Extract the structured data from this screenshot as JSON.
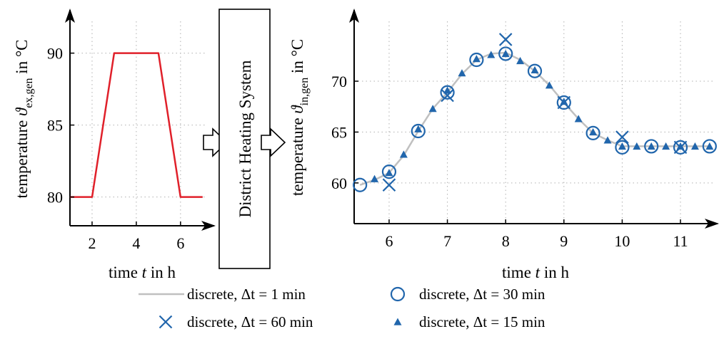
{
  "colors": {
    "input_line": "#e0202a",
    "reference_line": "#c0c0c0",
    "marker": "#2166ac",
    "grid": "#b0b0b0"
  },
  "block_label": "District Heating System",
  "chart_data": [
    {
      "type": "line",
      "name": "input",
      "xlabel": {
        "pre": "time ",
        "var": "t",
        "post": " in h"
      },
      "ylabel": {
        "pre": "temperature ",
        "var": "ϑ",
        "sub": "ex,gen",
        "post": " in °C"
      },
      "xlim": [
        1,
        7.2
      ],
      "ylim": [
        78,
        93
      ],
      "x_ticks": [
        2,
        4,
        6
      ],
      "y_ticks": [
        80,
        85,
        90
      ],
      "grid": true,
      "series": [
        {
          "x": [
            1,
            2,
            3,
            5,
            6,
            7
          ],
          "y": [
            80,
            80,
            90,
            90,
            80,
            80
          ]
        }
      ]
    },
    {
      "type": "line",
      "name": "output",
      "xlabel": {
        "pre": "time ",
        "var": "t",
        "post": " in h"
      },
      "ylabel": {
        "pre": "temperature ",
        "var": "ϑ",
        "sub": "in,gen",
        "post": " in °C"
      },
      "xlim": [
        5.4,
        11.6
      ],
      "ylim": [
        56,
        77
      ],
      "x_ticks": [
        6,
        7,
        8,
        9,
        10,
        11
      ],
      "y_ticks": [
        60,
        65,
        70
      ],
      "grid": true,
      "series": [
        {
          "name": "discrete, Δt = 1 min",
          "style": "line",
          "x": [
            5.5,
            5.75,
            6,
            6.25,
            6.5,
            6.75,
            7,
            7.25,
            7.5,
            7.75,
            8,
            8.25,
            8.5,
            8.75,
            9,
            9.25,
            9.5,
            9.75,
            10,
            10.25,
            10.5,
            10.75,
            11,
            11.25,
            11.5
          ],
          "y": [
            59.8,
            60.3,
            61.0,
            62.7,
            65.1,
            67.3,
            68.9,
            70.7,
            72.1,
            72.7,
            72.8,
            72.1,
            71.0,
            69.6,
            67.9,
            66.3,
            64.9,
            64.2,
            63.6,
            63.6,
            63.6,
            63.6,
            63.6,
            63.6,
            63.6
          ]
        },
        {
          "name": "discrete, Δt = 60 min",
          "style": "x",
          "x": [
            6,
            7,
            8,
            9,
            10,
            11
          ],
          "y": [
            59.8,
            68.6,
            74.1,
            67.9,
            64.5,
            63.5
          ]
        },
        {
          "name": "discrete, Δt = 30 min",
          "style": "circle",
          "x": [
            5.5,
            6,
            6.5,
            7,
            7.5,
            8,
            8.5,
            9,
            9.5,
            10,
            10.5,
            11,
            11.5
          ],
          "y": [
            59.8,
            61.1,
            65.1,
            68.9,
            72.1,
            72.7,
            71.0,
            67.9,
            64.9,
            63.5,
            63.6,
            63.5,
            63.6
          ]
        },
        {
          "name": "discrete, Δt = 15 min",
          "style": "triangle",
          "x": [
            5.75,
            6,
            6.25,
            6.5,
            6.75,
            7,
            7.25,
            7.5,
            7.75,
            8,
            8.25,
            8.5,
            8.75,
            9,
            9.25,
            9.5,
            9.75,
            10,
            10.25,
            10.5,
            10.75,
            11,
            11.25,
            11.5
          ],
          "y": [
            60.4,
            61.0,
            62.8,
            65.3,
            67.3,
            69.1,
            70.8,
            72.2,
            72.6,
            72.7,
            72.0,
            71.1,
            69.6,
            68.0,
            66.3,
            65.0,
            64.2,
            63.6,
            63.6,
            63.6,
            63.6,
            63.6,
            63.6,
            63.6
          ]
        }
      ],
      "legend_order": [
        0,
        2,
        1,
        3
      ],
      "legend_position": "bottom"
    }
  ]
}
